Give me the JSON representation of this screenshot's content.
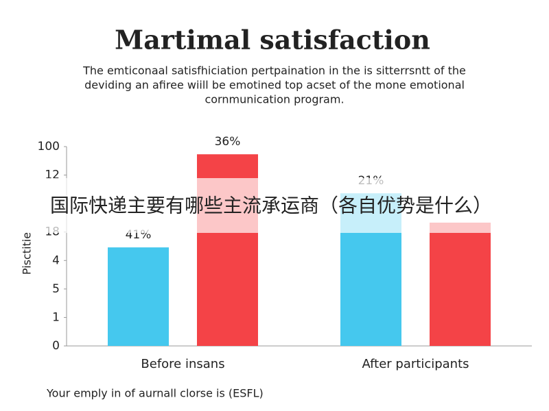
{
  "chart_data": {
    "type": "bar",
    "title": "Martimal satisfaction",
    "subtitle": [
      "The emticonaal satisfhiciation pertpaination in the is sitterrsntt of the",
      "deviding an afiree wiill be emotined top acset of the mone emotional",
      "cornmunication program."
    ],
    "ylabel": "Pisctitie",
    "footer": "Your emply in of aurnall clorse is (ESFL)",
    "overlay": "国际快递主要有哪些主流承运商（各自优势是什么）",
    "categories": [
      "Before insans",
      "After participants"
    ],
    "series": [
      {
        "color": "#45c8ee",
        "values": [
          3.46,
          5.36
        ],
        "value_labels": [
          "41%",
          "21%"
        ]
      },
      {
        "color": "#f44347",
        "values": [
          6.73,
          4.33
        ],
        "value_labels": [
          "36%",
          null
        ]
      }
    ],
    "ylim": [
      0,
      7
    ],
    "yticks": [
      0,
      1,
      {
        "value": 2,
        "label": "5"
      },
      {
        "value": 3,
        "label": "4"
      },
      {
        "value": 4,
        "label": "18"
      },
      {
        "value": 6,
        "label": "12"
      },
      {
        "value": 7,
        "label": "100"
      }
    ]
  }
}
